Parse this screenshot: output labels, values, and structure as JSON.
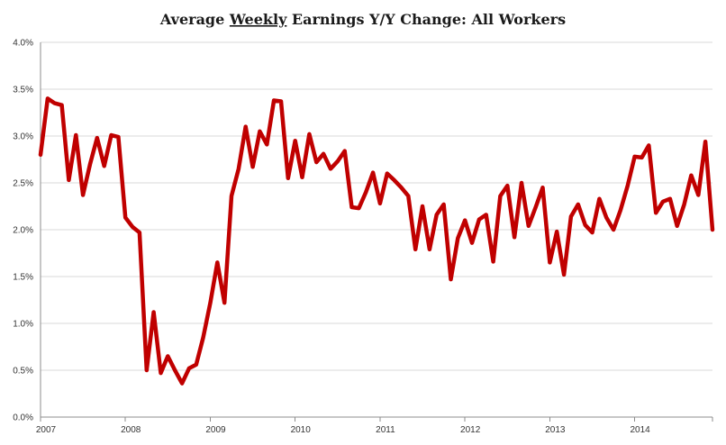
{
  "chart_data": {
    "type": "line",
    "title": {
      "prefix": "Average ",
      "emphasis": "Weekly",
      "suffix": " Earnings Y/Y Change: All Workers"
    },
    "xlabel": "",
    "ylabel": "",
    "ylim": [
      0,
      4.0
    ],
    "yticks": [
      {
        "value": 0.0,
        "label": "0.0%"
      },
      {
        "value": 0.5,
        "label": "0.5%"
      },
      {
        "value": 1.0,
        "label": "1.0%"
      },
      {
        "value": 1.5,
        "label": "1.5%"
      },
      {
        "value": 2.0,
        "label": "2.0%"
      },
      {
        "value": 2.5,
        "label": "2.5%"
      },
      {
        "value": 3.0,
        "label": "3.0%"
      },
      {
        "value": 3.5,
        "label": "3.5%"
      },
      {
        "value": 4.0,
        "label": "4.0%"
      }
    ],
    "xlim": [
      0,
      95
    ],
    "xticks": [
      {
        "value": 0,
        "label": "2007"
      },
      {
        "value": 12,
        "label": "2008"
      },
      {
        "value": 24,
        "label": "2009"
      },
      {
        "value": 36,
        "label": "2010"
      },
      {
        "value": 48,
        "label": "2011"
      },
      {
        "value": 60,
        "label": "2012"
      },
      {
        "value": 72,
        "label": "2013"
      },
      {
        "value": 84,
        "label": "2014"
      }
    ],
    "grid": "horizontal",
    "series": [
      {
        "name": "Average Weekly Earnings Y/Y Change: All Workers",
        "color": "#c00000",
        "x": [
          0,
          1,
          2,
          3,
          4,
          5,
          6,
          7,
          8,
          9,
          10,
          11,
          12,
          13,
          14,
          15,
          16,
          17,
          18,
          19,
          20,
          21,
          22,
          23,
          24,
          25,
          26,
          27,
          28,
          29,
          30,
          31,
          32,
          33,
          34,
          35,
          36,
          37,
          38,
          39,
          40,
          41,
          42,
          43,
          44,
          45,
          46,
          47,
          48,
          49,
          50,
          51,
          52,
          53,
          54,
          55,
          56,
          57,
          58,
          59,
          60,
          61,
          62,
          63,
          64,
          65,
          66,
          67,
          68,
          69,
          70,
          71,
          72,
          73,
          74,
          75,
          76,
          77,
          78,
          79,
          80,
          81,
          82,
          83,
          84,
          85,
          86,
          87,
          88,
          89,
          90,
          91,
          92,
          93,
          94,
          95
        ],
        "values": [
          2.8,
          3.4,
          3.35,
          3.33,
          2.53,
          3.01,
          2.37,
          2.7,
          2.98,
          2.68,
          3.01,
          2.99,
          2.13,
          2.03,
          1.97,
          0.5,
          1.12,
          0.47,
          0.65,
          0.5,
          0.36,
          0.52,
          0.56,
          0.85,
          1.22,
          1.65,
          1.22,
          2.36,
          2.65,
          3.1,
          2.67,
          3.05,
          2.91,
          3.38,
          3.37,
          2.55,
          2.95,
          2.56,
          3.02,
          2.72,
          2.81,
          2.65,
          2.73,
          2.84,
          2.24,
          2.23,
          2.4,
          2.61,
          2.28,
          2.6,
          2.53,
          2.45,
          2.36,
          1.79,
          2.25,
          1.79,
          2.16,
          2.27,
          1.47,
          1.91,
          2.1,
          1.86,
          2.11,
          2.16,
          1.66,
          2.36,
          2.47,
          1.92,
          2.5,
          2.04,
          2.24,
          2.45,
          1.65,
          1.98,
          1.52,
          2.14,
          2.27,
          2.05,
          1.97,
          2.33,
          2.13,
          2.0,
          2.21,
          2.47,
          2.78,
          2.77,
          2.9,
          2.18,
          2.3,
          2.33,
          2.04,
          2.27,
          2.58,
          2.37,
          2.94,
          2.0
        ]
      }
    ]
  }
}
